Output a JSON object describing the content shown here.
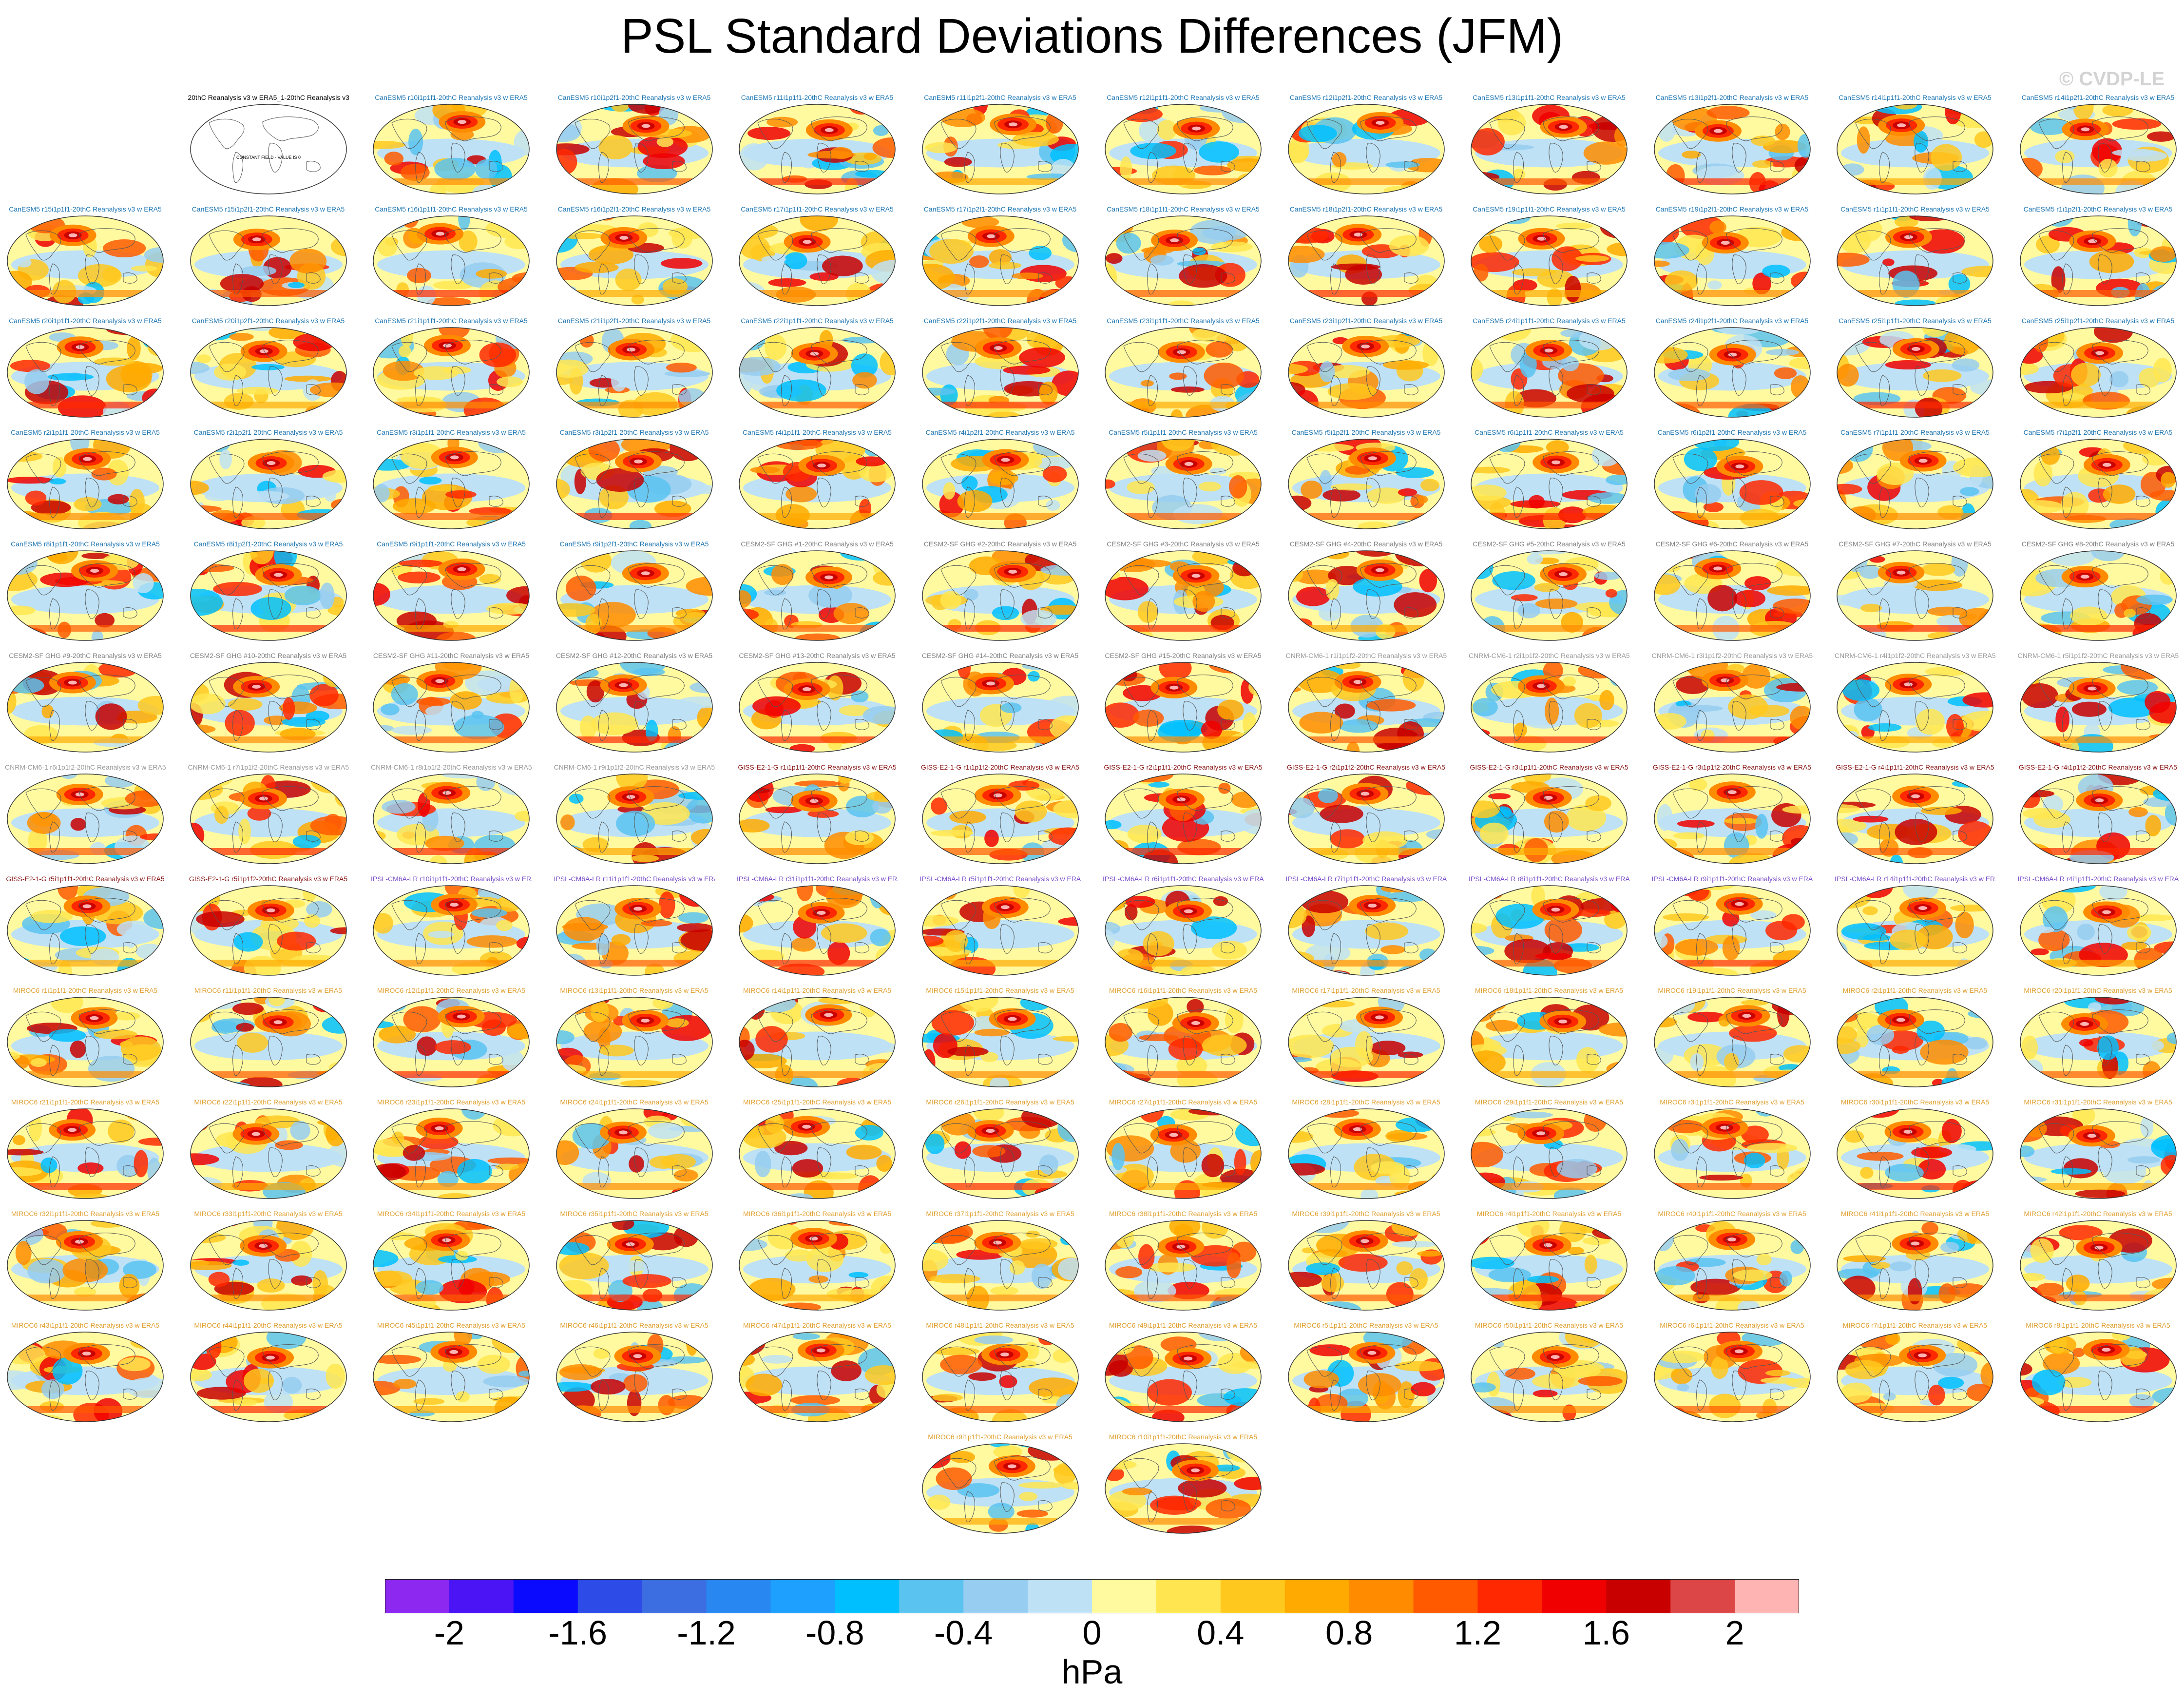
{
  "title": "PSL Standard Deviations Differences (JFM)",
  "watermark": "© CVDP-LE",
  "chart_data": {
    "type": "heatmap",
    "description_type": "panel grid of global maps",
    "units": "hPa",
    "colorbar": {
      "ticks": [
        "-2",
        "-1.6",
        "-1.2",
        "-0.8",
        "-0.4",
        "0",
        "0.4",
        "0.8",
        "1.2",
        "1.6",
        "2"
      ],
      "levels": [
        -2.2,
        -2.0,
        -1.8,
        -1.6,
        -1.4,
        -1.2,
        -1.0,
        -0.8,
        -0.6,
        -0.4,
        -0.2,
        0,
        0.2,
        0.4,
        0.6,
        0.8,
        1.0,
        1.2,
        1.4,
        1.6,
        1.8,
        2.0,
        2.2
      ],
      "colors": [
        "#8c28f0",
        "#4b14f5",
        "#0a0aff",
        "#2d4be6",
        "#3c6ee1",
        "#2887f0",
        "#1ea0ff",
        "#00bfff",
        "#5ac3f0",
        "#96cdf0",
        "#bee1f5",
        "#fffaa0",
        "#ffe650",
        "#ffc81e",
        "#ffaa00",
        "#ff8c00",
        "#ff5a00",
        "#ff2800",
        "#f00000",
        "#c80000",
        "#dc4646",
        "#ffb4b4"
      ]
    },
    "special_panel": {
      "label": "20thC Reanalysis v3 w ERA5_1-20thC Reanalysis v3 w ERA5",
      "note": "CONSTANT FIELD - VALUE IS 0"
    },
    "panels": [
      {
        "label": "CanESM5 r10i1p1f1-20thC Reanalysis v3 w ERA5",
        "group": "CanESM5"
      },
      {
        "label": "CanESM5 r10i1p2f1-20thC Reanalysis v3 w ERA5",
        "group": "CanESM5"
      },
      {
        "label": "CanESM5 r11i1p1f1-20thC Reanalysis v3 w ERA5",
        "group": "CanESM5"
      },
      {
        "label": "CanESM5 r11i1p2f1-20thC Reanalysis v3 w ERA5",
        "group": "CanESM5"
      },
      {
        "label": "CanESM5 r12i1p1f1-20thC Reanalysis v3 w ERA5",
        "group": "CanESM5"
      },
      {
        "label": "CanESM5 r12i1p2f1-20thC Reanalysis v3 w ERA5",
        "group": "CanESM5"
      },
      {
        "label": "CanESM5 r13i1p1f1-20thC Reanalysis v3 w ERA5",
        "group": "CanESM5"
      },
      {
        "label": "CanESM5 r13i1p2f1-20thC Reanalysis v3 w ERA5",
        "group": "CanESM5"
      },
      {
        "label": "CanESM5 r14i1p1f1-20thC Reanalysis v3 w ERA5",
        "group": "CanESM5"
      },
      {
        "label": "CanESM5 r14i1p2f1-20thC Reanalysis v3 w ERA5",
        "group": "CanESM5"
      },
      {
        "label": "CanESM5 r15i1p1f1-20thC Reanalysis v3 w ERA5",
        "group": "CanESM5"
      },
      {
        "label": "CanESM5 r15i1p2f1-20thC Reanalysis v3 w ERA5",
        "group": "CanESM5"
      },
      {
        "label": "CanESM5 r16i1p1f1-20thC Reanalysis v3 w ERA5",
        "group": "CanESM5"
      },
      {
        "label": "CanESM5 r16i1p2f1-20thC Reanalysis v3 w ERA5",
        "group": "CanESM5"
      },
      {
        "label": "CanESM5 r17i1p1f1-20thC Reanalysis v3 w ERA5",
        "group": "CanESM5"
      },
      {
        "label": "CanESM5 r17i1p2f1-20thC Reanalysis v3 w ERA5",
        "group": "CanESM5"
      },
      {
        "label": "CanESM5 r18i1p1f1-20thC Reanalysis v3 w ERA5",
        "group": "CanESM5"
      },
      {
        "label": "CanESM5 r18i1p2f1-20thC Reanalysis v3 w ERA5",
        "group": "CanESM5"
      },
      {
        "label": "CanESM5 r19i1p1f1-20thC Reanalysis v3 w ERA5",
        "group": "CanESM5"
      },
      {
        "label": "CanESM5 r19i1p2f1-20thC Reanalysis v3 w ERA5",
        "group": "CanESM5"
      },
      {
        "label": "CanESM5 r1i1p1f1-20thC Reanalysis v3 w ERA5",
        "group": "CanESM5"
      },
      {
        "label": "CanESM5 r1i1p2f1-20thC Reanalysis v3 w ERA5",
        "group": "CanESM5"
      },
      {
        "label": "CanESM5 r20i1p1f1-20thC Reanalysis v3 w ERA5",
        "group": "CanESM5"
      },
      {
        "label": "CanESM5 r20i1p2f1-20thC Reanalysis v3 w ERA5",
        "group": "CanESM5"
      },
      {
        "label": "CanESM5 r21i1p1f1-20thC Reanalysis v3 w ERA5",
        "group": "CanESM5"
      },
      {
        "label": "CanESM5 r21i1p2f1-20thC Reanalysis v3 w ERA5",
        "group": "CanESM5"
      },
      {
        "label": "CanESM5 r22i1p1f1-20thC Reanalysis v3 w ERA5",
        "group": "CanESM5"
      },
      {
        "label": "CanESM5 r22i1p2f1-20thC Reanalysis v3 w ERA5",
        "group": "CanESM5"
      },
      {
        "label": "CanESM5 r23i1p1f1-20thC Reanalysis v3 w ERA5",
        "group": "CanESM5"
      },
      {
        "label": "CanESM5 r23i1p2f1-20thC Reanalysis v3 w ERA5",
        "group": "CanESM5"
      },
      {
        "label": "CanESM5 r24i1p1f1-20thC Reanalysis v3 w ERA5",
        "group": "CanESM5"
      },
      {
        "label": "CanESM5 r24i1p2f1-20thC Reanalysis v3 w ERA5",
        "group": "CanESM5"
      },
      {
        "label": "CanESM5 r25i1p1f1-20thC Reanalysis v3 w ERA5",
        "group": "CanESM5"
      },
      {
        "label": "CanESM5 r25i1p2f1-20thC Reanalysis v3 w ERA5",
        "group": "CanESM5"
      },
      {
        "label": "CanESM5 r2i1p1f1-20thC Reanalysis v3 w ERA5",
        "group": "CanESM5"
      },
      {
        "label": "CanESM5 r2i1p2f1-20thC Reanalysis v3 w ERA5",
        "group": "CanESM5"
      },
      {
        "label": "CanESM5 r3i1p1f1-20thC Reanalysis v3 w ERA5",
        "group": "CanESM5"
      },
      {
        "label": "CanESM5 r3i1p2f1-20thC Reanalysis v3 w ERA5",
        "group": "CanESM5"
      },
      {
        "label": "CanESM5 r4i1p1f1-20thC Reanalysis v3 w ERA5",
        "group": "CanESM5"
      },
      {
        "label": "CanESM5 r4i1p2f1-20thC Reanalysis v3 w ERA5",
        "group": "CanESM5"
      },
      {
        "label": "CanESM5 r5i1p1f1-20thC Reanalysis v3 w ERA5",
        "group": "CanESM5"
      },
      {
        "label": "CanESM5 r5i1p2f1-20thC Reanalysis v3 w ERA5",
        "group": "CanESM5"
      },
      {
        "label": "CanESM5 r6i1p1f1-20thC Reanalysis v3 w ERA5",
        "group": "CanESM5"
      },
      {
        "label": "CanESM5 r6i1p2f1-20thC Reanalysis v3 w ERA5",
        "group": "CanESM5"
      },
      {
        "label": "CanESM5 r7i1p1f1-20thC Reanalysis v3 w ERA5",
        "group": "CanESM5"
      },
      {
        "label": "CanESM5 r7i1p2f1-20thC Reanalysis v3 w ERA5",
        "group": "CanESM5"
      },
      {
        "label": "CanESM5 r8i1p1f1-20thC Reanalysis v3 w ERA5",
        "group": "CanESM5"
      },
      {
        "label": "CanESM5 r8i1p2f1-20thC Reanalysis v3 w ERA5",
        "group": "CanESM5"
      },
      {
        "label": "CanESM5 r9i1p1f1-20thC Reanalysis v3 w ERA5",
        "group": "CanESM5"
      },
      {
        "label": "CanESM5 r9i1p2f1-20thC Reanalysis v3 w ERA5",
        "group": "CanESM5"
      },
      {
        "label": "CESM2-SF GHG #1-20thC Reanalysis v3 w ERA5",
        "group": "CESM2"
      },
      {
        "label": "CESM2-SF GHG #2-20thC Reanalysis v3 w ERA5",
        "group": "CESM2"
      },
      {
        "label": "CESM2-SF GHG #3-20thC Reanalysis v3 w ERA5",
        "group": "CESM2"
      },
      {
        "label": "CESM2-SF GHG #4-20thC Reanalysis v3 w ERA5",
        "group": "CESM2"
      },
      {
        "label": "CESM2-SF GHG #5-20thC Reanalysis v3 w ERA5",
        "group": "CESM2"
      },
      {
        "label": "CESM2-SF GHG #6-20thC Reanalysis v3 w ERA5",
        "group": "CESM2"
      },
      {
        "label": "CESM2-SF GHG #7-20thC Reanalysis v3 w ERA5",
        "group": "CESM2"
      },
      {
        "label": "CESM2-SF GHG #8-20thC Reanalysis v3 w ERA5",
        "group": "CESM2"
      },
      {
        "label": "CESM2-SF GHG #9-20thC Reanalysis v3 w ERA5",
        "group": "CESM2"
      },
      {
        "label": "CESM2-SF GHG #10-20thC Reanalysis v3 w ERA5",
        "group": "CESM2"
      },
      {
        "label": "CESM2-SF GHG #11-20thC Reanalysis v3 w ERA5",
        "group": "CESM2"
      },
      {
        "label": "CESM2-SF GHG #12-20thC Reanalysis v3 w ERA5",
        "group": "CESM2"
      },
      {
        "label": "CESM2-SF GHG #13-20thC Reanalysis v3 w ERA5",
        "group": "CESM2"
      },
      {
        "label": "CESM2-SF GHG #14-20thC Reanalysis v3 w ERA5",
        "group": "CESM2"
      },
      {
        "label": "CESM2-SF GHG #15-20thC Reanalysis v3 w ERA5",
        "group": "CESM2"
      },
      {
        "label": "CNRM-CM6-1 r1i1p1f2-20thC Reanalysis v3 w ERA5",
        "group": "CNRM"
      },
      {
        "label": "CNRM-CM6-1 r2i1p1f2-20thC Reanalysis v3 w ERA5",
        "group": "CNRM"
      },
      {
        "label": "CNRM-CM6-1 r3i1p1f2-20thC Reanalysis v3 w ERA5",
        "group": "CNRM"
      },
      {
        "label": "CNRM-CM6-1 r4i1p1f2-20thC Reanalysis v3 w ERA5",
        "group": "CNRM"
      },
      {
        "label": "CNRM-CM6-1 r5i1p1f2-20thC Reanalysis v3 w ERA5",
        "group": "CNRM"
      },
      {
        "label": "CNRM-CM6-1 r6i1p1f2-20thC Reanalysis v3 w ERA5",
        "group": "CNRM"
      },
      {
        "label": "CNRM-CM6-1 r7i1p1f2-20thC Reanalysis v3 w ERA5",
        "group": "CNRM"
      },
      {
        "label": "CNRM-CM6-1 r8i1p1f2-20thC Reanalysis v3 w ERA5",
        "group": "CNRM"
      },
      {
        "label": "CNRM-CM6-1 r9i1p1f2-20thC Reanalysis v3 w ERA5",
        "group": "CNRM"
      },
      {
        "label": "GISS-E2-1-G r1i1p1f1-20thC Reanalysis v3 w ERA5",
        "group": "GISS"
      },
      {
        "label": "GISS-E2-1-G r1i1p1f2-20thC Reanalysis v3 w ERA5",
        "group": "GISS"
      },
      {
        "label": "GISS-E2-1-G r2i1p1f1-20thC Reanalysis v3 w ERA5",
        "group": "GISS"
      },
      {
        "label": "GISS-E2-1-G r2i1p1f2-20thC Reanalysis v3 w ERA5",
        "group": "GISS"
      },
      {
        "label": "GISS-E2-1-G r3i1p1f1-20thC Reanalysis v3 w ERA5",
        "group": "GISS"
      },
      {
        "label": "GISS-E2-1-G r3i1p1f2-20thC Reanalysis v3 w ERA5",
        "group": "GISS"
      },
      {
        "label": "GISS-E2-1-G r4i1p1f1-20thC Reanalysis v3 w ERA5",
        "group": "GISS"
      },
      {
        "label": "GISS-E2-1-G r4i1p1f2-20thC Reanalysis v3 w ERA5",
        "group": "GISS"
      },
      {
        "label": "GISS-E2-1-G r5i1p1f1-20thC Reanalysis v3 w ERA5",
        "group": "GISS"
      },
      {
        "label": "GISS-E2-1-G r5i1p1f2-20thC Reanalysis v3 w ERA5",
        "group": "GISS"
      },
      {
        "label": "IPSL-CM6A-LR r10i1p1f1-20thC Reanalysis v3 w ERA5",
        "group": "IPSL"
      },
      {
        "label": "IPSL-CM6A-LR r11i1p1f1-20thC Reanalysis v3 w ERA5",
        "group": "IPSL"
      },
      {
        "label": "IPSL-CM6A-LR r31i1p1f1-20thC Reanalysis v3 w ERA5",
        "group": "IPSL"
      },
      {
        "label": "IPSL-CM6A-LR r5i1p1f1-20thC Reanalysis v3 w ERA5",
        "group": "IPSL"
      },
      {
        "label": "IPSL-CM6A-LR r6i1p1f1-20thC Reanalysis v3 w ERA5",
        "group": "IPSL"
      },
      {
        "label": "IPSL-CM6A-LR r7i1p1f1-20thC Reanalysis v3 w ERA5",
        "group": "IPSL"
      },
      {
        "label": "IPSL-CM6A-LR r8i1p1f1-20thC Reanalysis v3 w ERA5",
        "group": "IPSL"
      },
      {
        "label": "IPSL-CM6A-LR r9i1p1f1-20thC Reanalysis v3 w ERA5",
        "group": "IPSL"
      },
      {
        "label": "IPSL-CM6A-LR r14i1p1f1-20thC Reanalysis v3 w ERA5",
        "group": "IPSL"
      },
      {
        "label": "IPSL-CM6A-LR r4i1p1f1-20thC Reanalysis v3 w ERA5",
        "group": "IPSL"
      },
      {
        "label": "MIROC6 r1i1p1f1-20thC Reanalysis v3 w ERA5",
        "group": "MIROC6"
      },
      {
        "label": "MIROC6 r11i1p1f1-20thC Reanalysis v3 w ERA5",
        "group": "MIROC6"
      },
      {
        "label": "MIROC6 r12i1p1f1-20thC Reanalysis v3 w ERA5",
        "group": "MIROC6"
      },
      {
        "label": "MIROC6 r13i1p1f1-20thC Reanalysis v3 w ERA5",
        "group": "MIROC6"
      },
      {
        "label": "MIROC6 r14i1p1f1-20thC Reanalysis v3 w ERA5",
        "group": "MIROC6"
      },
      {
        "label": "MIROC6 r15i1p1f1-20thC Reanalysis v3 w ERA5",
        "group": "MIROC6"
      },
      {
        "label": "MIROC6 r16i1p1f1-20thC Reanalysis v3 w ERA5",
        "group": "MIROC6"
      },
      {
        "label": "MIROC6 r17i1p1f1-20thC Reanalysis v3 w ERA5",
        "group": "MIROC6"
      },
      {
        "label": "MIROC6 r18i1p1f1-20thC Reanalysis v3 w ERA5",
        "group": "MIROC6"
      },
      {
        "label": "MIROC6 r19i1p1f1-20thC Reanalysis v3 w ERA5",
        "group": "MIROC6"
      },
      {
        "label": "MIROC6 r2i1p1f1-20thC Reanalysis v3 w ERA5",
        "group": "MIROC6"
      },
      {
        "label": "MIROC6 r20i1p1f1-20thC Reanalysis v3 w ERA5",
        "group": "MIROC6"
      },
      {
        "label": "MIROC6 r21i1p1f1-20thC Reanalysis v3 w ERA5",
        "group": "MIROC6"
      },
      {
        "label": "MIROC6 r22i1p1f1-20thC Reanalysis v3 w ERA5",
        "group": "MIROC6"
      },
      {
        "label": "MIROC6 r23i1p1f1-20thC Reanalysis v3 w ERA5",
        "group": "MIROC6"
      },
      {
        "label": "MIROC6 r24i1p1f1-20thC Reanalysis v3 w ERA5",
        "group": "MIROC6"
      },
      {
        "label": "MIROC6 r25i1p1f1-20thC Reanalysis v3 w ERA5",
        "group": "MIROC6"
      },
      {
        "label": "MIROC6 r26i1p1f1-20thC Reanalysis v3 w ERA5",
        "group": "MIROC6"
      },
      {
        "label": "MIROC6 r27i1p1f1-20thC Reanalysis v3 w ERA5",
        "group": "MIROC6"
      },
      {
        "label": "MIROC6 r28i1p1f1-20thC Reanalysis v3 w ERA5",
        "group": "MIROC6"
      },
      {
        "label": "MIROC6 r29i1p1f1-20thC Reanalysis v3 w ERA5",
        "group": "MIROC6"
      },
      {
        "label": "MIROC6 r3i1p1f1-20thC Reanalysis v3 w ERA5",
        "group": "MIROC6"
      },
      {
        "label": "MIROC6 r30i1p1f1-20thC Reanalysis v3 w ERA5",
        "group": "MIROC6"
      },
      {
        "label": "MIROC6 r31i1p1f1-20thC Reanalysis v3 w ERA5",
        "group": "MIROC6"
      },
      {
        "label": "MIROC6 r32i1p1f1-20thC Reanalysis v3 w ERA5",
        "group": "MIROC6"
      },
      {
        "label": "MIROC6 r33i1p1f1-20thC Reanalysis v3 w ERA5",
        "group": "MIROC6"
      },
      {
        "label": "MIROC6 r34i1p1f1-20thC Reanalysis v3 w ERA5",
        "group": "MIROC6"
      },
      {
        "label": "MIROC6 r35i1p1f1-20thC Reanalysis v3 w ERA5",
        "group": "MIROC6"
      },
      {
        "label": "MIROC6 r36i1p1f1-20thC Reanalysis v3 w ERA5",
        "group": "MIROC6"
      },
      {
        "label": "MIROC6 r37i1p1f1-20thC Reanalysis v3 w ERA5",
        "group": "MIROC6"
      },
      {
        "label": "MIROC6 r38i1p1f1-20thC Reanalysis v3 w ERA5",
        "group": "MIROC6"
      },
      {
        "label": "MIROC6 r39i1p1f1-20thC Reanalysis v3 w ERA5",
        "group": "MIROC6"
      },
      {
        "label": "MIROC6 r4i1p1f1-20thC Reanalysis v3 w ERA5",
        "group": "MIROC6"
      },
      {
        "label": "MIROC6 r40i1p1f1-20thC Reanalysis v3 w ERA5",
        "group": "MIROC6"
      },
      {
        "label": "MIROC6 r41i1p1f1-20thC Reanalysis v3 w ERA5",
        "group": "MIROC6"
      },
      {
        "label": "MIROC6 r42i1p1f1-20thC Reanalysis v3 w ERA5",
        "group": "MIROC6"
      },
      {
        "label": "MIROC6 r43i1p1f1-20thC Reanalysis v3 w ERA5",
        "group": "MIROC6"
      },
      {
        "label": "MIROC6 r44i1p1f1-20thC Reanalysis v3 w ERA5",
        "group": "MIROC6"
      },
      {
        "label": "MIROC6 r45i1p1f1-20thC Reanalysis v3 w ERA5",
        "group": "MIROC6"
      },
      {
        "label": "MIROC6 r46i1p1f1-20thC Reanalysis v3 w ERA5",
        "group": "MIROC6"
      },
      {
        "label": "MIROC6 r47i1p1f1-20thC Reanalysis v3 w ERA5",
        "group": "MIROC6"
      },
      {
        "label": "MIROC6 r48i1p1f1-20thC Reanalysis v3 w ERA5",
        "group": "MIROC6"
      },
      {
        "label": "MIROC6 r49i1p1f1-20thC Reanalysis v3 w ERA5",
        "group": "MIROC6"
      },
      {
        "label": "MIROC6 r5i1p1f1-20thC Reanalysis v3 w ERA5",
        "group": "MIROC6"
      },
      {
        "label": "MIROC6 r50i1p1f1-20thC Reanalysis v3 w ERA5",
        "group": "MIROC6"
      },
      {
        "label": "MIROC6 r6i1p1f1-20thC Reanalysis v3 w ERA5",
        "group": "MIROC6"
      },
      {
        "label": "MIROC6 r7i1p1f1-20thC Reanalysis v3 w ERA5",
        "group": "MIROC6"
      },
      {
        "label": "MIROC6 r8i1p1f1-20thC Reanalysis v3 w ERA5",
        "group": "MIROC6"
      },
      {
        "label": "MIROC6 r9i1p1f1-20thC Reanalysis v3 w ERA5",
        "group": "MIROC6"
      },
      {
        "label": "MIROC6 r10i1p1f1-20thC Reanalysis v3 w ERA5",
        "group": "MIROC6"
      }
    ]
  },
  "label_colors": {
    "special": "#000000",
    "CanESM5": "#1f77b4",
    "CESM2": "#7f7f7f",
    "CNRM": "#9a9a9a",
    "GISS": "#8b1a1a",
    "IPSL": "#7b4fc9",
    "MIROC6": "#e0a030"
  }
}
